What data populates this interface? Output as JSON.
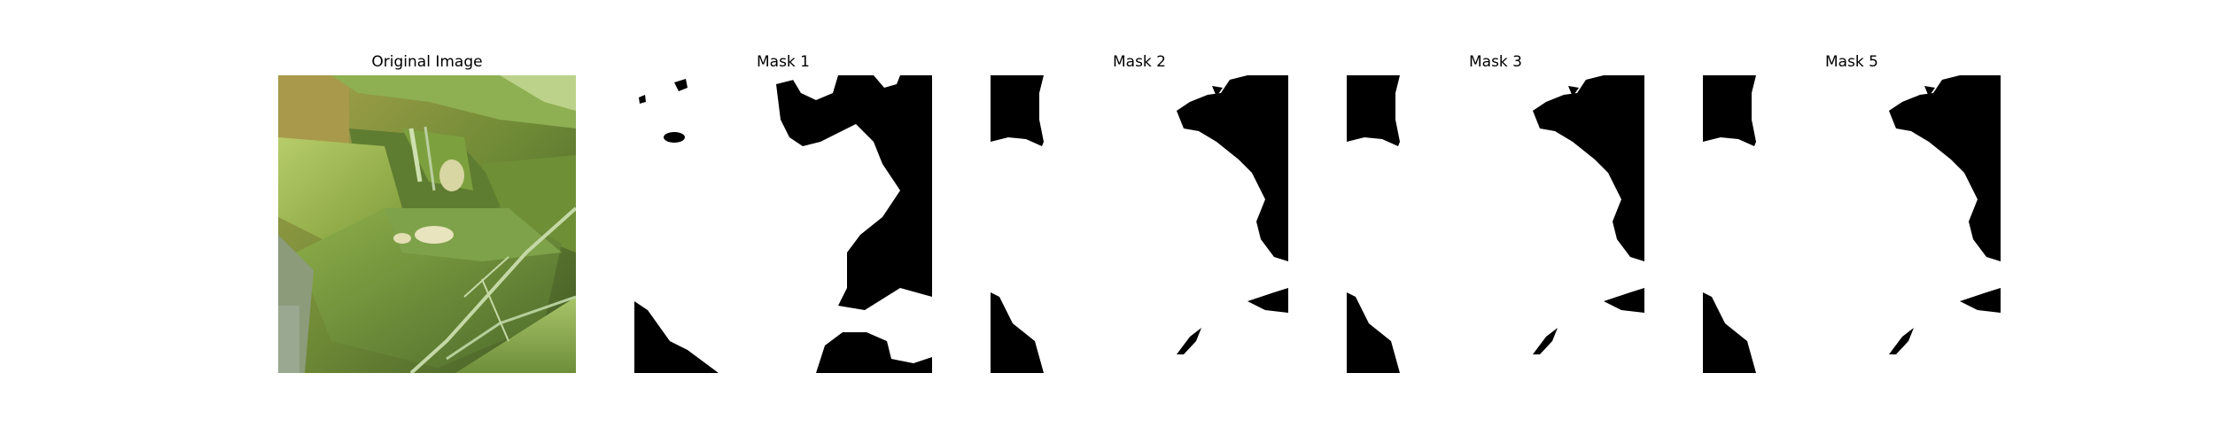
{
  "panels": [
    {
      "title": "Original Image",
      "kind": "photo"
    },
    {
      "title": "Mask 1",
      "kind": "mask"
    },
    {
      "title": "Mask 2",
      "kind": "mask"
    },
    {
      "title": "Mask 3",
      "kind": "mask"
    },
    {
      "title": "Mask 5",
      "kind": "mask"
    }
  ],
  "colors": {
    "background": "#ffffff",
    "mask_foreground": "#ffffff",
    "mask_background": "#000000",
    "leaf_light": "#9dbb4a",
    "leaf_dark": "#4f6e2b"
  }
}
